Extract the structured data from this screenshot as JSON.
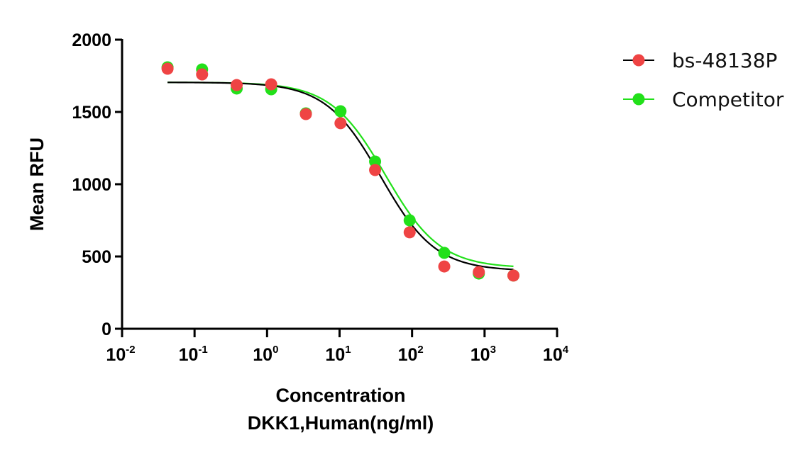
{
  "chart_data": {
    "type": "scatter",
    "title": "",
    "xlabel": [
      "Concentration",
      "DKK1,Human(ng/ml)"
    ],
    "ylabel": "Mean RFU",
    "xscale": "log10",
    "xlim": [
      0.01,
      10000
    ],
    "ylim": [
      0,
      2000
    ],
    "yticks": [
      0,
      500,
      1000,
      1500,
      2000
    ],
    "ytick_labels": [
      "0",
      "500",
      "1000",
      "1500",
      "2000"
    ],
    "xticks": [
      0.01,
      0.1,
      1,
      10,
      100,
      1000,
      10000
    ],
    "xtick_labels": [
      {
        "base": "10",
        "exp": "-2"
      },
      {
        "base": "10",
        "exp": "-1"
      },
      {
        "base": "10",
        "exp": "0"
      },
      {
        "base": "10",
        "exp": "1"
      },
      {
        "base": "10",
        "exp": "2"
      },
      {
        "base": "10",
        "exp": "3"
      },
      {
        "base": "10",
        "exp": "4"
      }
    ],
    "grid": false,
    "legend_position": "top-right",
    "x": [
      0.0424,
      0.127,
      0.381,
      1.14,
      3.43,
      10.3,
      30.9,
      92.6,
      278,
      833,
      2500
    ],
    "series": [
      {
        "name": "bs-48138P",
        "marker_color": "#ef4444",
        "line_color": "#000000",
        "values": [
          1799,
          1760,
          1686,
          1691,
          1485,
          1422,
          1098,
          667,
          431,
          392,
          368
        ],
        "fit": {
          "model": "4PL",
          "top": 1705,
          "bottom": 400,
          "ec50": 37,
          "hill": 1.15
        }
      },
      {
        "name": "Competitor",
        "marker_color": "#22e01a",
        "line_color": "#22e01a",
        "values": [
          1809,
          1794,
          1662,
          1657,
          1490,
          1505,
          1157,
          750,
          525,
          382,
          368
        ],
        "fit": {
          "model": "4PL",
          "top": 1705,
          "bottom": 420,
          "ec50": 43,
          "hill": 1.15
        }
      }
    ]
  }
}
